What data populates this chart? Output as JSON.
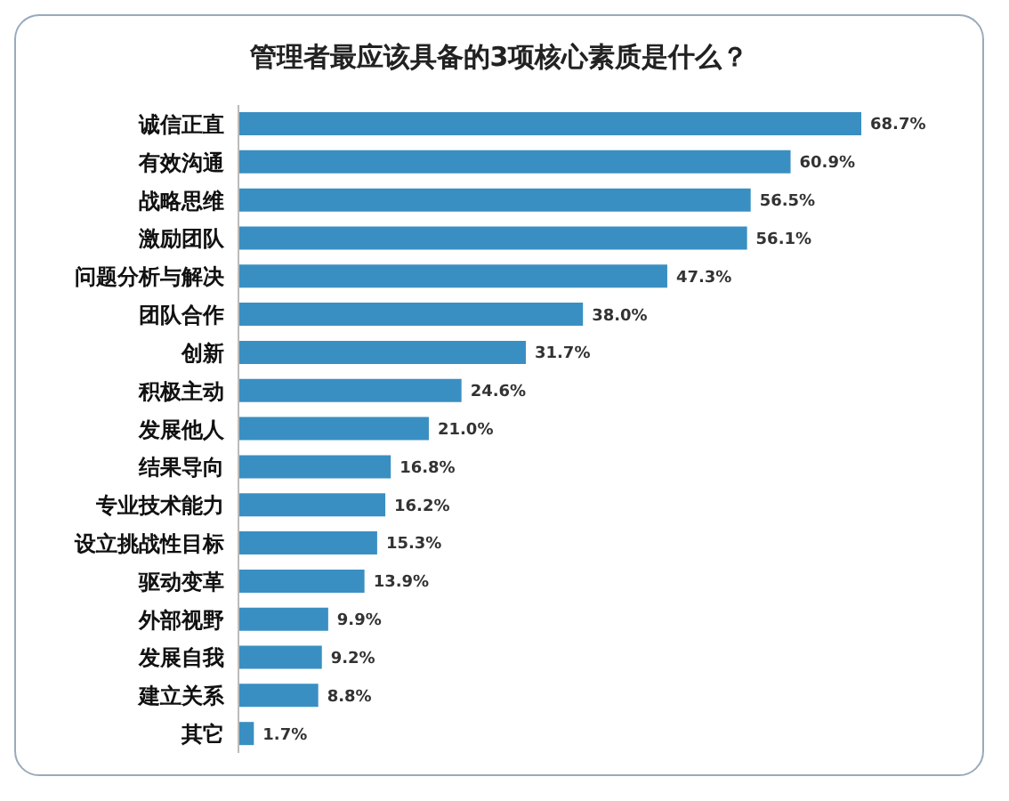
{
  "chart_data": {
    "type": "bar",
    "orientation": "horizontal",
    "title": "管理者最应该具备的3项核心素质是什么？",
    "categories": [
      "诚信正直",
      "有效沟通",
      "战略思维",
      "激励团队",
      "问题分析与解决",
      "团队合作",
      "创新",
      "积极主动",
      "发展他人",
      "结果导向",
      "专业技术能力",
      "设立挑战性目标",
      "驱动变革",
      "外部视野",
      "发展自我",
      "建立关系",
      "其它"
    ],
    "values": [
      68.7,
      60.9,
      56.5,
      56.1,
      47.3,
      38.0,
      31.7,
      24.6,
      21.0,
      16.8,
      16.2,
      15.3,
      13.9,
      9.9,
      9.2,
      8.8,
      1.7
    ],
    "value_labels": [
      "68.7%",
      "60.9%",
      "56.5%",
      "56.1%",
      "47.3%",
      "38.0%",
      "31.7%",
      "24.6%",
      "21.0%",
      "16.8%",
      "16.2%",
      "15.3%",
      "13.9%",
      "9.9%",
      "9.2%",
      "8.8%",
      "1.7%"
    ],
    "color": "#3a8fc2",
    "grid": false,
    "legend": false
  }
}
